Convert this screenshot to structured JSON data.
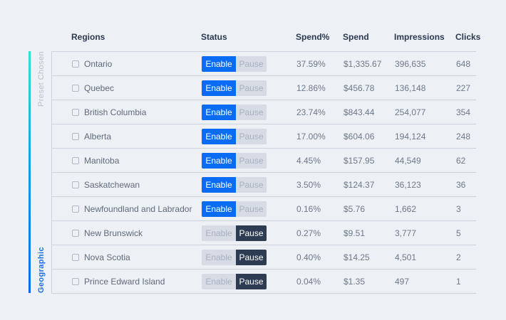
{
  "sidebar": {
    "preset_label": "Preset Chosen",
    "geographic_label": "Geographic"
  },
  "colors": {
    "page_background": "#edf0f5",
    "accent_line_top": "#2ce4d2",
    "accent_line_bottom": "#0c67e8",
    "enable_active": "#0a6cf5",
    "pause_active": "#2d3c52",
    "button_inactive_bg": "#d6dbe4",
    "geographic_label": "#1770e8",
    "row_border": "#c9d2dd"
  },
  "table": {
    "headers": {
      "regions": "Regions",
      "status": "Status",
      "spend_pct": "Spend%",
      "spend": "Spend",
      "impressions": "Impressions",
      "clicks": "Clicks"
    },
    "button_labels": {
      "enable": "Enable",
      "pause": "Pause"
    },
    "rows": [
      {
        "region": "Ontario",
        "status": "enabled",
        "spend_pct": "37.59%",
        "spend": "$1,335.67",
        "impressions": "396,635",
        "clicks": "648"
      },
      {
        "region": "Quebec",
        "status": "enabled",
        "spend_pct": "12.86%",
        "spend": "$456.78",
        "impressions": "136,148",
        "clicks": "227"
      },
      {
        "region": "British Columbia",
        "status": "enabled",
        "spend_pct": "23.74%",
        "spend": "$843.44",
        "impressions": "254,077",
        "clicks": "354"
      },
      {
        "region": "Alberta",
        "status": "enabled",
        "spend_pct": "17.00%",
        "spend": "$604.06",
        "impressions": "194,124",
        "clicks": "248"
      },
      {
        "region": "Manitoba",
        "status": "enabled",
        "spend_pct": "4.45%",
        "spend": "$157.95",
        "impressions": "44,549",
        "clicks": "62"
      },
      {
        "region": "Saskatchewan",
        "status": "enabled",
        "spend_pct": "3.50%",
        "spend": "$124.37",
        "impressions": "36,123",
        "clicks": "36"
      },
      {
        "region": "Newfoundland and Labrador",
        "status": "enabled",
        "spend_pct": "0.16%",
        "spend": "$5.76",
        "impressions": "1,662",
        "clicks": "3"
      },
      {
        "region": "New Brunswick",
        "status": "paused",
        "spend_pct": "0.27%",
        "spend": "$9.51",
        "impressions": "3,777",
        "clicks": "5"
      },
      {
        "region": "Nova Scotia",
        "status": "paused",
        "spend_pct": "0.40%",
        "spend": "$14.25",
        "impressions": "4,501",
        "clicks": "2"
      },
      {
        "region": "Prince Edward Island",
        "status": "paused",
        "spend_pct": "0.04%",
        "spend": "$1.35",
        "impressions": "497",
        "clicks": "1"
      }
    ]
  }
}
